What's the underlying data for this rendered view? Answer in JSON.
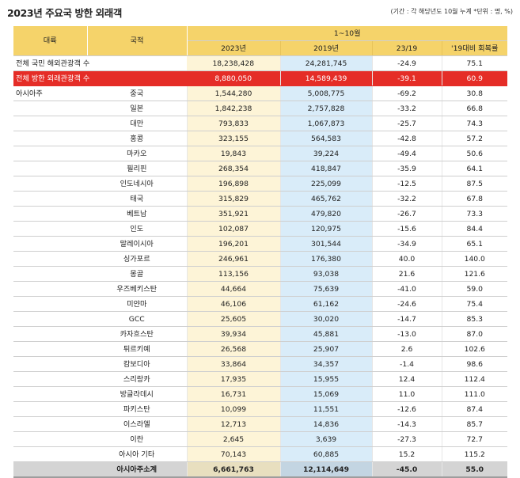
{
  "title": "2023년 주요국 방한 외래객",
  "note": "(기간 : 각 해당년도 10월 누계   *단위 : 명, %)",
  "headers": {
    "region": "대륙",
    "country": "국적",
    "period": "1~10월",
    "col_2023": "2023년",
    "col_2019": "2019년",
    "col_change": "23/19",
    "col_recovery": "'19대비 회복률"
  },
  "totals": [
    {
      "label": "전체 국민 해외관광객 수",
      "v2023": "18,238,428",
      "v2019": "24,281,745",
      "chg": "-24.9",
      "rec": "75.1",
      "highlight": false
    },
    {
      "label": "전체 방한 외래관광객 수",
      "v2023": "8,880,050",
      "v2019": "14,589,439",
      "chg": "-39.1",
      "rec": "60.9",
      "highlight": true
    }
  ],
  "region_label": "아시아주",
  "rows": [
    {
      "country": "중국",
      "v2023": "1,544,280",
      "v2019": "5,008,775",
      "chg": "-69.2",
      "rec": "30.8"
    },
    {
      "country": "일본",
      "v2023": "1,842,238",
      "v2019": "2,757,828",
      "chg": "-33.2",
      "rec": "66.8"
    },
    {
      "country": "대만",
      "v2023": "793,833",
      "v2019": "1,067,873",
      "chg": "-25.7",
      "rec": "74.3"
    },
    {
      "country": "홍콩",
      "v2023": "323,155",
      "v2019": "564,583",
      "chg": "-42.8",
      "rec": "57.2"
    },
    {
      "country": "마카오",
      "v2023": "19,843",
      "v2019": "39,224",
      "chg": "-49.4",
      "rec": "50.6"
    },
    {
      "country": "필리핀",
      "v2023": "268,354",
      "v2019": "418,847",
      "chg": "-35.9",
      "rec": "64.1"
    },
    {
      "country": "인도네시아",
      "v2023": "196,898",
      "v2019": "225,099",
      "chg": "-12.5",
      "rec": "87.5"
    },
    {
      "country": "태국",
      "v2023": "315,829",
      "v2019": "465,762",
      "chg": "-32.2",
      "rec": "67.8"
    },
    {
      "country": "베트남",
      "v2023": "351,921",
      "v2019": "479,820",
      "chg": "-26.7",
      "rec": "73.3"
    },
    {
      "country": "인도",
      "v2023": "102,087",
      "v2019": "120,975",
      "chg": "-15.6",
      "rec": "84.4"
    },
    {
      "country": "말레이시아",
      "v2023": "196,201",
      "v2019": "301,544",
      "chg": "-34.9",
      "rec": "65.1"
    },
    {
      "country": "싱가포르",
      "v2023": "246,961",
      "v2019": "176,380",
      "chg": "40.0",
      "rec": "140.0"
    },
    {
      "country": "몽골",
      "v2023": "113,156",
      "v2019": "93,038",
      "chg": "21.6",
      "rec": "121.6"
    },
    {
      "country": "우즈베키스탄",
      "v2023": "44,664",
      "v2019": "75,639",
      "chg": "-41.0",
      "rec": "59.0"
    },
    {
      "country": "미얀마",
      "v2023": "46,106",
      "v2019": "61,162",
      "chg": "-24.6",
      "rec": "75.4"
    },
    {
      "country": "GCC",
      "v2023": "25,605",
      "v2019": "30,020",
      "chg": "-14.7",
      "rec": "85.3"
    },
    {
      "country": "카자흐스탄",
      "v2023": "39,934",
      "v2019": "45,881",
      "chg": "-13.0",
      "rec": "87.0"
    },
    {
      "country": "튀르키예",
      "v2023": "26,568",
      "v2019": "25,907",
      "chg": "2.6",
      "rec": "102.6"
    },
    {
      "country": "캄보디아",
      "v2023": "33,864",
      "v2019": "34,357",
      "chg": "-1.4",
      "rec": "98.6"
    },
    {
      "country": "스리랑카",
      "v2023": "17,935",
      "v2019": "15,955",
      "chg": "12.4",
      "rec": "112.4"
    },
    {
      "country": "방글라데시",
      "v2023": "16,731",
      "v2019": "15,069",
      "chg": "11.0",
      "rec": "111.0"
    },
    {
      "country": "파키스탄",
      "v2023": "10,099",
      "v2019": "11,551",
      "chg": "-12.6",
      "rec": "87.4"
    },
    {
      "country": "이스라엘",
      "v2023": "12,713",
      "v2019": "14,836",
      "chg": "-14.3",
      "rec": "85.7"
    },
    {
      "country": "이란",
      "v2023": "2,645",
      "v2019": "3,639",
      "chg": "-27.3",
      "rec": "72.7"
    },
    {
      "country": "아시아 기타",
      "v2023": "70,143",
      "v2019": "60,885",
      "chg": "15.2",
      "rec": "115.2"
    }
  ],
  "subtotal": {
    "country": "아시아주소계",
    "v2023": "6,661,763",
    "v2019": "12,114,649",
    "chg": "-45.0",
    "rec": "55.0"
  },
  "colors": {
    "header": "#f5d36a",
    "col_2023": "#fdf4d7",
    "col_2019": "#d9ecf9",
    "highlight": "#e52d27",
    "subtotal": "#d4d4d4"
  }
}
